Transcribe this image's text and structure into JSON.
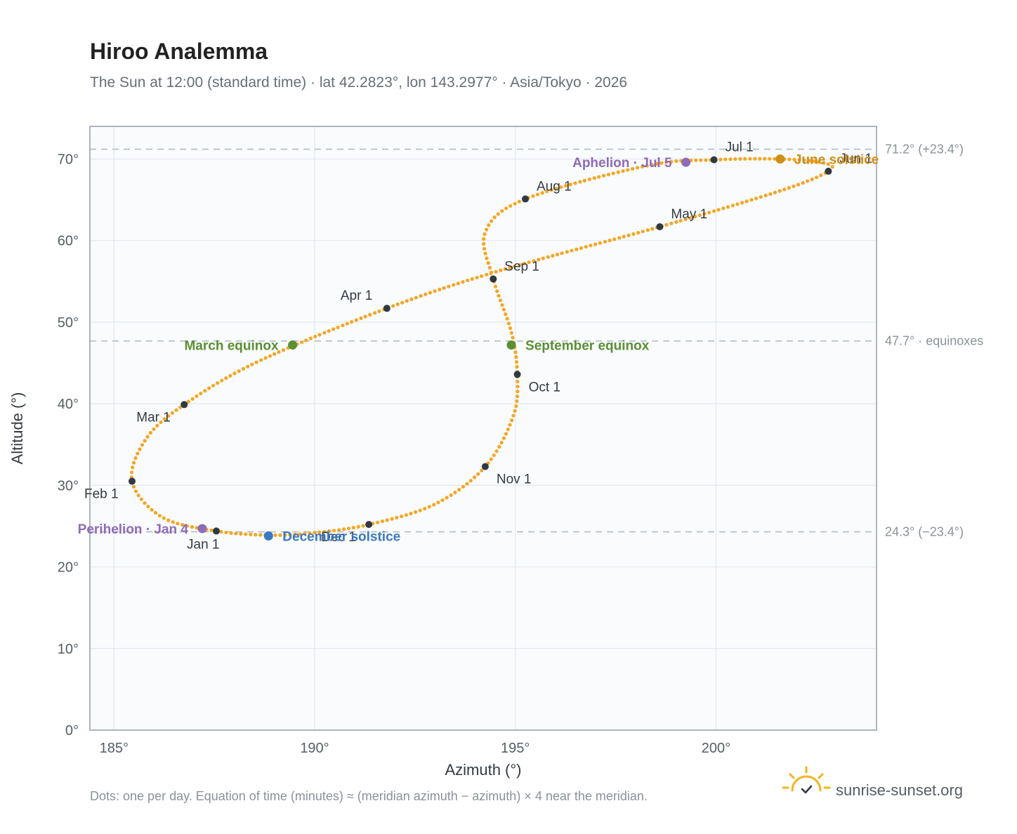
{
  "chart_data": {
    "type": "scatter",
    "title": "Hiroo Analemma",
    "subtitle": "The Sun at 12:00 (standard time) · lat 42.2823°, lon 143.2977° · Asia/Tokyo · 2026",
    "xlabel": "Azimuth (°)",
    "ylabel": "Altitude (°)",
    "xlim": [
      184.4,
      204.0
    ],
    "ylim": [
      0,
      74
    ],
    "x_ticks": [
      {
        "value": 185,
        "label": "185°"
      },
      {
        "value": 190,
        "label": "190°"
      },
      {
        "value": 195,
        "label": "195°"
      },
      {
        "value": 200,
        "label": "200°"
      }
    ],
    "y_ticks": [
      {
        "value": 0,
        "label": "0°"
      },
      {
        "value": 10,
        "label": "10°"
      },
      {
        "value": 20,
        "label": "20°"
      },
      {
        "value": 30,
        "label": "30°"
      },
      {
        "value": 40,
        "label": "40°"
      },
      {
        "value": 50,
        "label": "50°"
      },
      {
        "value": 60,
        "label": "60°"
      },
      {
        "value": 70,
        "label": "70°"
      }
    ],
    "grid": true,
    "reference_lines": [
      {
        "y": 71.2,
        "label": "71.2° (+23.4°)"
      },
      {
        "y": 47.7,
        "label": "47.7° · equinoxes"
      },
      {
        "y": 24.3,
        "label": "24.3° (−23.4°)"
      }
    ],
    "curve_color": "#f5a623",
    "curve_anchors": [
      {
        "x": 187.55,
        "y": 24.4
      },
      {
        "x": 186.2,
        "y": 26.1
      },
      {
        "x": 185.45,
        "y": 30.5
      },
      {
        "x": 185.8,
        "y": 35.7
      },
      {
        "x": 186.75,
        "y": 39.9
      },
      {
        "x": 188.6,
        "y": 45.2
      },
      {
        "x": 191.8,
        "y": 51.7
      },
      {
        "x": 194.6,
        "y": 56.3
      },
      {
        "x": 198.6,
        "y": 61.7
      },
      {
        "x": 201.6,
        "y": 66.1
      },
      {
        "x": 202.8,
        "y": 68.5
      },
      {
        "x": 202.7,
        "y": 69.5
      },
      {
        "x": 201.6,
        "y": 70.0
      },
      {
        "x": 199.95,
        "y": 69.9
      },
      {
        "x": 198.3,
        "y": 69.2
      },
      {
        "x": 195.25,
        "y": 65.1
      },
      {
        "x": 194.25,
        "y": 61.0
      },
      {
        "x": 194.45,
        "y": 55.3
      },
      {
        "x": 194.9,
        "y": 48.8
      },
      {
        "x": 195.05,
        "y": 43.6
      },
      {
        "x": 194.95,
        "y": 38.5
      },
      {
        "x": 194.25,
        "y": 32.3
      },
      {
        "x": 193.0,
        "y": 27.7
      },
      {
        "x": 191.35,
        "y": 25.2
      },
      {
        "x": 190.0,
        "y": 24.2
      },
      {
        "x": 188.9,
        "y": 23.9
      },
      {
        "x": 187.55,
        "y": 24.4
      }
    ],
    "months": [
      {
        "label": "Jan 1",
        "x": 187.55,
        "y": 24.4,
        "pos": "below"
      },
      {
        "label": "Feb 1",
        "x": 185.45,
        "y": 30.5,
        "pos": "below-left"
      },
      {
        "label": "Mar 1",
        "x": 186.75,
        "y": 39.9,
        "pos": "below-left"
      },
      {
        "label": "Apr 1",
        "x": 191.8,
        "y": 51.7,
        "pos": "above-left"
      },
      {
        "label": "May 1",
        "x": 198.6,
        "y": 61.7,
        "pos": "above-right"
      },
      {
        "label": "Jun 1",
        "x": 202.8,
        "y": 68.5,
        "pos": "above-right"
      },
      {
        "label": "Jul 1",
        "x": 199.95,
        "y": 69.9,
        "pos": "above-right"
      },
      {
        "label": "Aug 1",
        "x": 195.25,
        "y": 65.1,
        "pos": "above-right"
      },
      {
        "label": "Sep 1",
        "x": 194.45,
        "y": 55.3,
        "pos": "above-right"
      },
      {
        "label": "Oct 1",
        "x": 195.05,
        "y": 43.6,
        "pos": "below-right"
      },
      {
        "label": "Nov 1",
        "x": 194.25,
        "y": 32.3,
        "pos": "below-right"
      },
      {
        "label": "Dec 1",
        "x": 191.35,
        "y": 25.2,
        "pos": "below-left"
      }
    ],
    "events": [
      {
        "label": "Perihelion · Jan 4",
        "x": 187.2,
        "y": 24.7,
        "color": "#8e6bb8",
        "pos": "left"
      },
      {
        "label": "March equinox",
        "x": 189.45,
        "y": 47.2,
        "color": "#5a8f32",
        "pos": "left"
      },
      {
        "label": "June solstice",
        "x": 201.6,
        "y": 70.0,
        "color": "#cf8f15",
        "pos": "right"
      },
      {
        "label": "Aphelion · Jul 5",
        "x": 199.25,
        "y": 69.6,
        "color": "#8e6bb8",
        "pos": "left"
      },
      {
        "label": "September equinox",
        "x": 194.9,
        "y": 47.2,
        "color": "#5a8f32",
        "pos": "right"
      },
      {
        "label": "December solstice",
        "x": 188.85,
        "y": 23.8,
        "color": "#3b78c2",
        "pos": "right"
      }
    ]
  },
  "footnote": "Dots: one per day. Equation of time (minutes) ≈ (meridian azimuth − azimuth) × 4 near the meridian.",
  "brand": {
    "name": "sunrise-sunset.org",
    "icon": "sun-check-icon",
    "icon_color": "#f2b51d"
  }
}
